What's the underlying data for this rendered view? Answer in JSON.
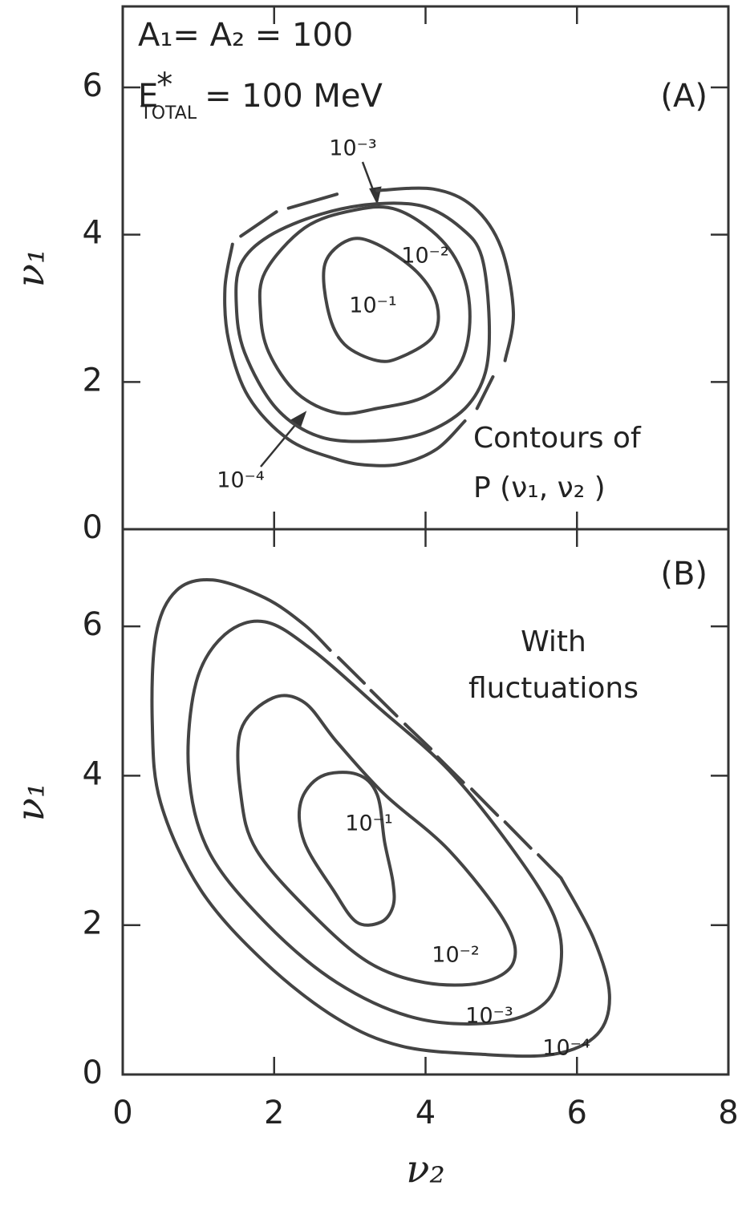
{
  "chart_data": [
    {
      "type": "contour",
      "xlim": [
        0,
        8
      ],
      "ylim": [
        0,
        7.1
      ],
      "xticks": [
        0,
        2,
        4,
        6,
        8
      ],
      "yticks": [
        0,
        2,
        4,
        6
      ],
      "ylabel": "ν₁",
      "masses": "A₁= A₂ = 100",
      "energy": {
        "symbol": "E",
        "superscript": "*",
        "subscript": "TOTAL",
        "value": "= 100 MeV"
      },
      "panel": "(A)",
      "annotations": [
        "Contours of",
        "P (ν₁, ν₂ )"
      ],
      "contours": [
        {
          "label": "10⁻¹",
          "x": [
            2.67,
            2.99,
            3.36,
            3.89,
            4.15,
            4.1,
            3.68,
            3.36,
            2.93,
            2.72
          ],
          "y": [
            3.6,
            3.93,
            3.87,
            3.49,
            3.05,
            2.62,
            2.34,
            2.29,
            2.51,
            2.94
          ]
        },
        {
          "label": "10⁻²",
          "x": [
            1.88,
            2.4,
            3.04,
            3.62,
            4.21,
            4.52,
            4.58,
            4.42,
            3.99,
            3.36,
            2.83,
            2.3,
            1.93,
            1.82
          ],
          "y": [
            3.49,
            4.09,
            4.33,
            4.34,
            3.93,
            3.38,
            2.73,
            2.18,
            1.8,
            1.64,
            1.58,
            1.85,
            2.4,
            2.94
          ]
        },
        {
          "label": "10⁻³",
          "x": [
            1.56,
            1.93,
            2.62,
            3.36,
            3.99,
            4.47,
            4.74,
            4.84,
            4.79,
            4.52,
            3.99,
            3.36,
            2.62,
            2.03,
            1.61,
            1.5
          ],
          "y": [
            3.6,
            3.98,
            4.28,
            4.42,
            4.38,
            4.09,
            3.71,
            2.84,
            2.13,
            1.64,
            1.31,
            1.2,
            1.25,
            1.64,
            2.4,
            3.05
          ]
        },
        {
          "label": "10⁻⁴",
          "x": [
            3.36,
            4.1,
            4.63,
            5.0,
            5.16,
            5.05,
            null,
            4.89,
            4.68,
            null,
            4.52,
            4.15,
            3.68,
            3.25,
            2.83,
            2.19,
            1.66,
            1.4,
            1.35,
            1.45,
            null,
            1.56,
            2.03,
            null,
            2.19,
            2.83
          ],
          "y": [
            4.6,
            4.62,
            4.38,
            3.82,
            2.94,
            2.29,
            null,
            2.07,
            1.64,
            null,
            1.47,
            1.09,
            0.89,
            0.87,
            0.95,
            1.22,
            1.8,
            2.56,
            3.27,
            3.87,
            null,
            3.98,
            4.31,
            null,
            4.36,
            4.55
          ]
        }
      ]
    },
    {
      "type": "contour",
      "xlim": [
        0,
        8
      ],
      "ylim": [
        0,
        7.3
      ],
      "xticks": [
        0,
        2,
        4,
        6,
        8
      ],
      "yticks": [
        0,
        2,
        4,
        6
      ],
      "ylabel": "ν₁",
      "xlabel": "ν₂",
      "panel": "(B)",
      "annotations": [
        "With",
        "fluctuations"
      ],
      "contours": [
        {
          "label": "10⁻¹",
          "x": [
            2.35,
            2.62,
            3.09,
            3.36,
            3.46,
            3.57,
            3.57,
            3.41,
            3.09,
            2.78,
            2.4
          ],
          "y": [
            3.64,
            3.99,
            4.02,
            3.75,
            3.11,
            2.57,
            2.25,
            2.04,
            2.04,
            2.47,
            3.11
          ]
        },
        {
          "label": "10⁻²",
          "x": [
            1.56,
            1.98,
            2.4,
            2.83,
            3.46,
            4.31,
            5.05,
            5.16,
            4.74,
            3.99,
            3.25,
            2.51,
            1.77,
            1.56
          ],
          "y": [
            4.61,
            5.04,
            4.98,
            4.45,
            3.75,
            3.0,
            2.04,
            1.5,
            1.23,
            1.23,
            1.5,
            2.14,
            3.0,
            3.75
          ]
        },
        {
          "label": "10⁻³",
          "x": [
            0.97,
            1.35,
            1.88,
            2.51,
            3.36,
            4.31,
            5.16,
            5.69,
            5.79,
            5.58,
            4.95,
            3.89,
            2.83,
            1.88,
            1.13,
            0.87
          ],
          "y": [
            5.25,
            5.89,
            6.06,
            5.68,
            4.93,
            4.07,
            3.0,
            2.14,
            1.5,
            0.96,
            0.7,
            0.75,
            1.23,
            2.04,
            3.0,
            4.07
          ]
        },
        {
          "label": "10⁻⁴",
          "x": [
            5.79,
            6.22,
            6.43,
            6.27,
            5.69,
            4.74,
            3.68,
            2.83,
            1.88,
            1.03,
            0.5,
            0.39,
            0.44,
            0.71,
            1.19,
            1.88,
            2.4,
            2.74,
            null,
            2.85,
            3.19,
            null,
            3.28,
            3.62,
            null,
            3.73,
            4.07,
            null,
            4.16,
            4.5,
            null,
            4.61,
            4.95,
            null,
            5.05,
            5.39,
            null,
            5.49,
            5.79
          ],
          "y": [
            2.63,
            1.82,
            1.07,
            0.54,
            0.27,
            0.27,
            0.38,
            0.75,
            1.5,
            2.47,
            3.64,
            4.72,
            5.89,
            6.48,
            6.62,
            6.38,
            6.02,
            5.68,
            null,
            5.58,
            5.24,
            null,
            5.14,
            4.8,
            null,
            4.69,
            4.36,
            null,
            4.25,
            3.91,
            null,
            3.82,
            3.47,
            null,
            3.38,
            3.03,
            null,
            2.94,
            2.63
          ]
        }
      ]
    }
  ]
}
